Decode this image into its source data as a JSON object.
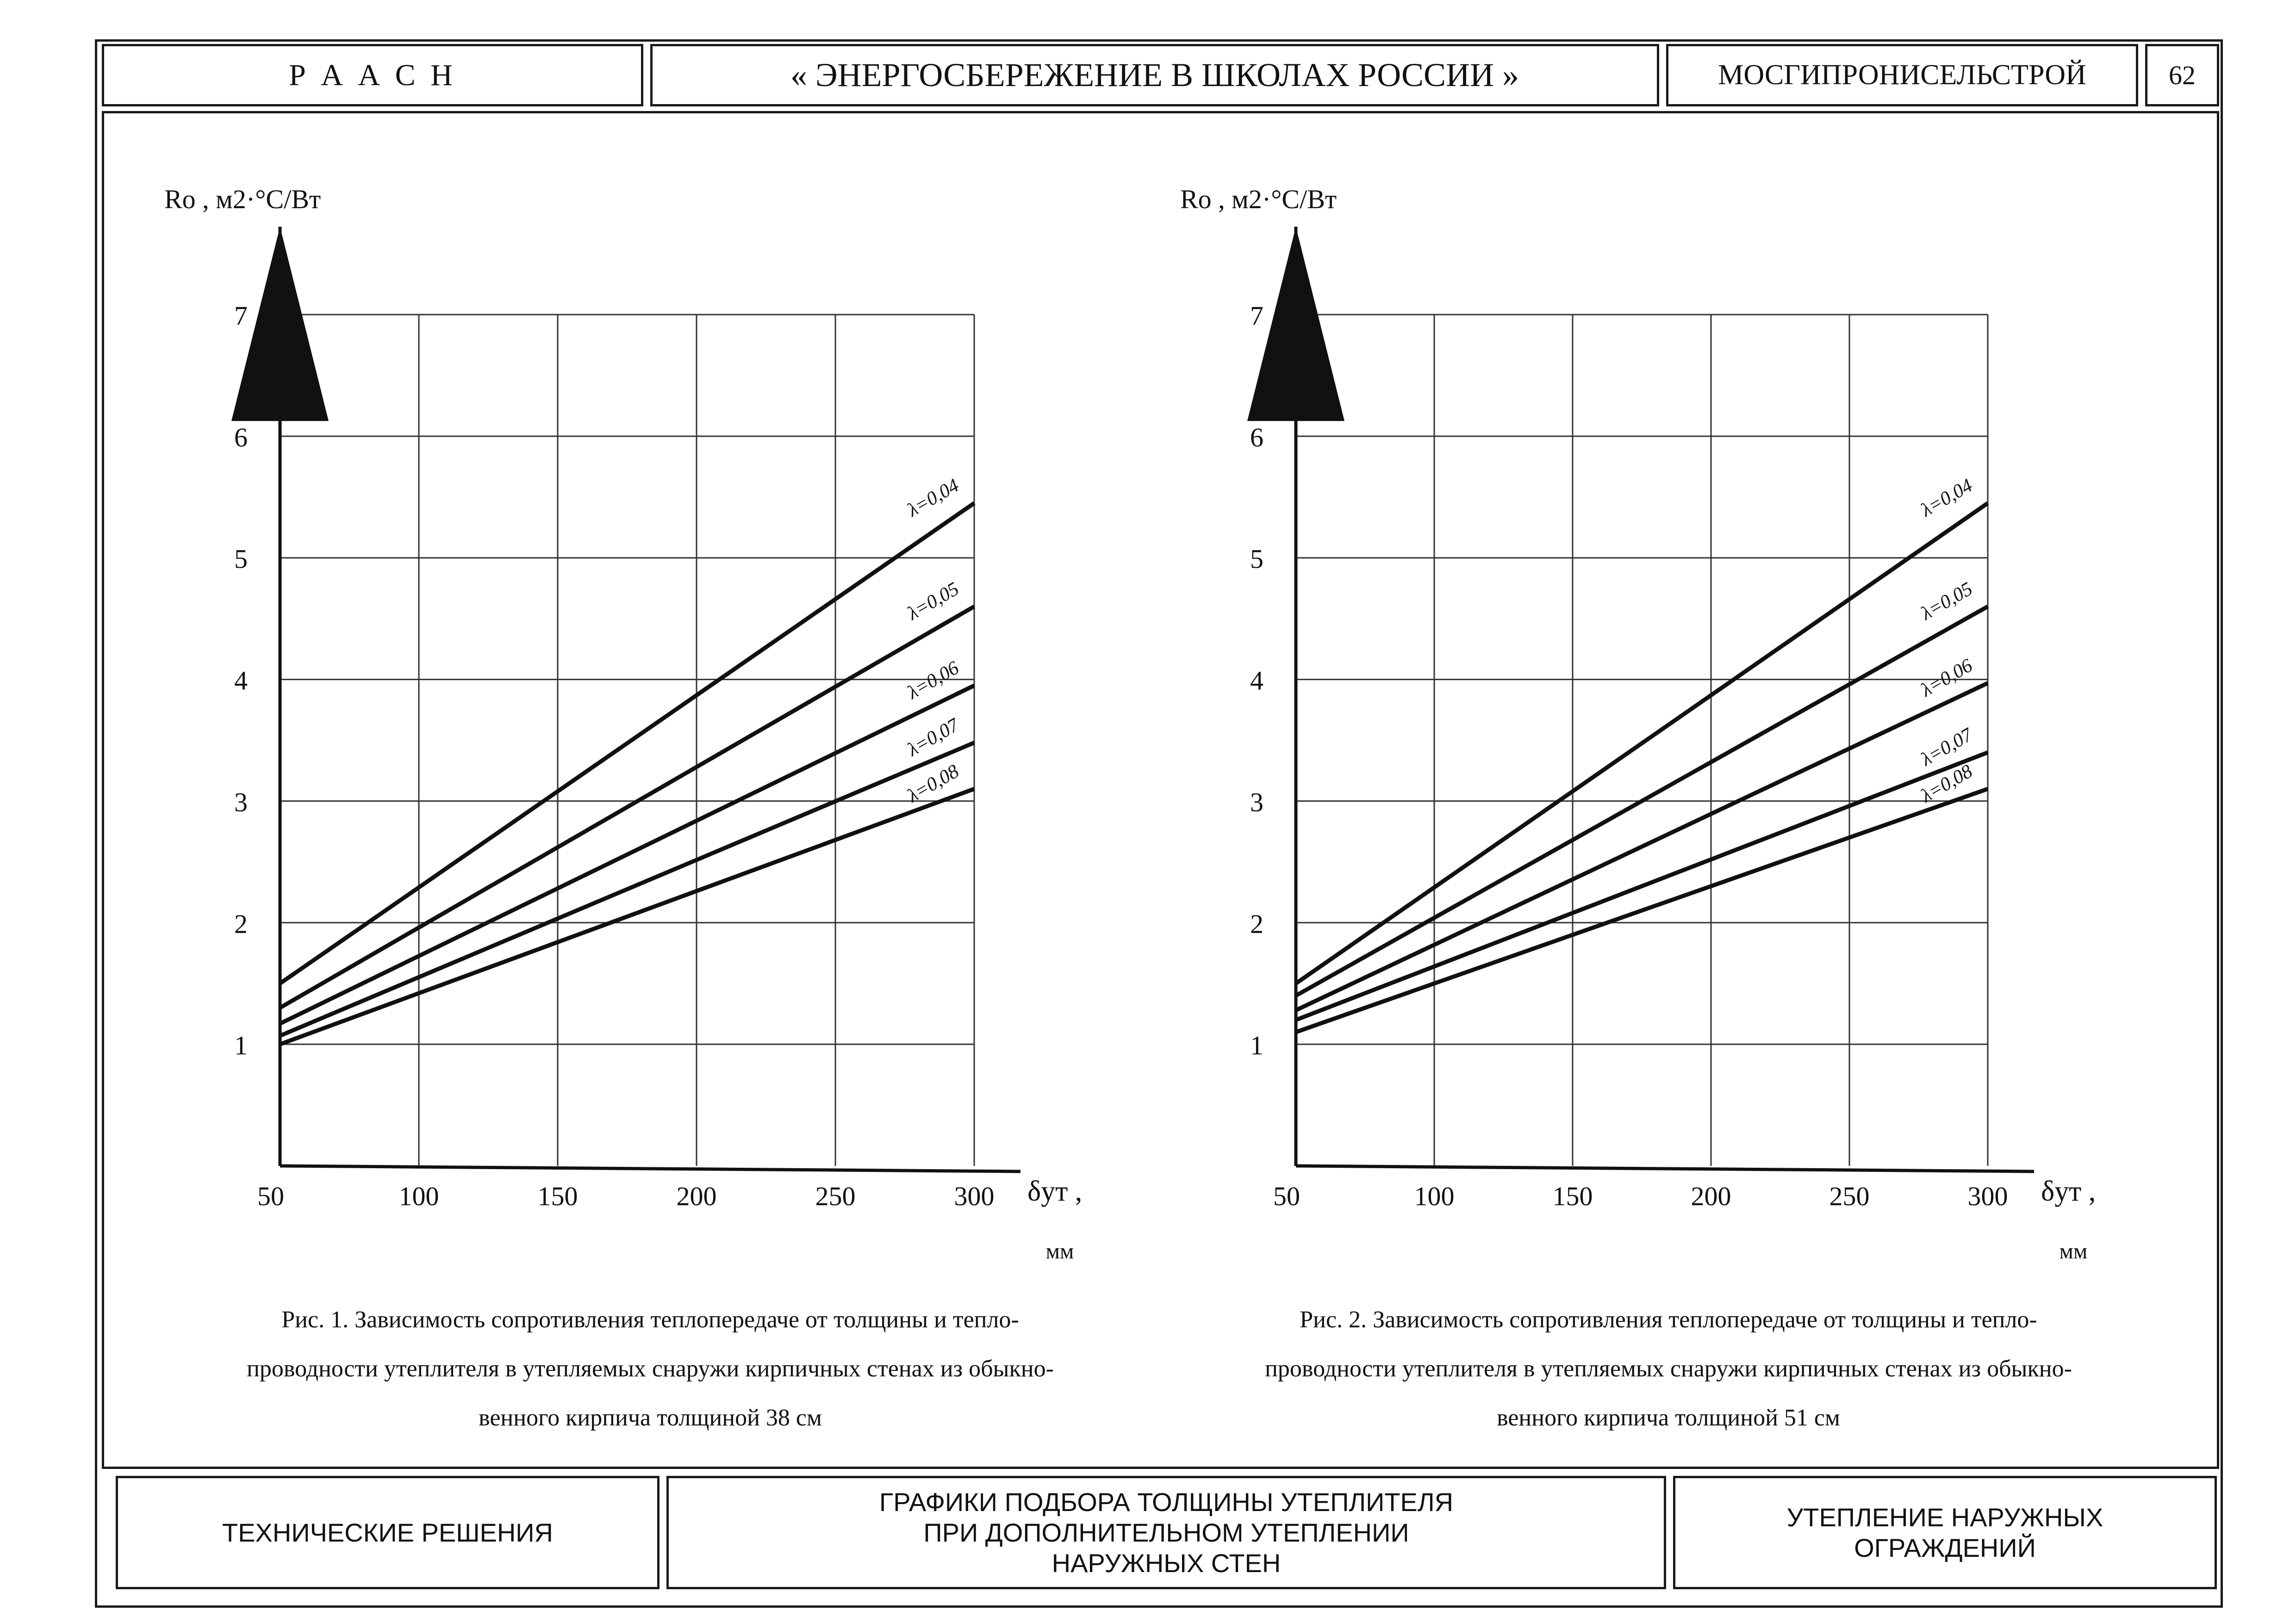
{
  "header": {
    "org": "Р А А С Н",
    "title": "« ЭНЕРГОСБЕРЕЖЕНИЕ В ШКОЛАХ РОССИИ »",
    "institute": "МОСГИПРОНИСЕЛЬСТРОЙ",
    "page_number": "62"
  },
  "footer": {
    "left": "ТЕХНИЧЕСКИЕ РЕШЕНИЯ",
    "center_lines": [
      "ГРАФИКИ ПОДБОРА ТОЛЩИНЫ УТЕПЛИТЕЛЯ",
      "ПРИ ДОПОЛНИТЕЛЬНОМ УТЕПЛЕНИИ",
      "НАРУЖНЫХ СТЕН"
    ],
    "right_lines": [
      "УТЕПЛЕНИЕ НАРУЖНЫХ",
      "ОГРАЖДЕНИЙ"
    ]
  },
  "chart_data": [
    {
      "type": "line",
      "title": "",
      "ylabel": "Ro , м2·°С/Вт",
      "xlabel": "δут ,",
      "xunit": "мм",
      "xlim": [
        50,
        300
      ],
      "ylim": [
        0,
        7
      ],
      "x_ticks": [
        50,
        100,
        150,
        200,
        250,
        300
      ],
      "y_ticks": [
        1,
        2,
        3,
        4,
        5,
        6,
        7
      ],
      "grid": true,
      "series": [
        {
          "name": "λ=0,04",
          "x": [
            50,
            300
          ],
          "y": [
            1.5,
            5.45
          ]
        },
        {
          "name": "λ=0,05",
          "x": [
            50,
            300
          ],
          "y": [
            1.3,
            4.6
          ]
        },
        {
          "name": "λ=0,06",
          "x": [
            50,
            300
          ],
          "y": [
            1.17,
            3.95
          ]
        },
        {
          "name": "λ=0,07",
          "x": [
            50,
            300
          ],
          "y": [
            1.07,
            3.48
          ]
        },
        {
          "name": "λ=0,08",
          "x": [
            50,
            300
          ],
          "y": [
            1.0,
            3.1
          ]
        }
      ],
      "caption_lines": [
        "Рис. 1.   Зависимость сопротивления теплопередаче от толщины и тепло-",
        "проводности утеплителя в утепляемых снаружи кирпичных стенах из обыкно-",
        "венного кирпича толщиной 38 см"
      ]
    },
    {
      "type": "line",
      "title": "",
      "ylabel": "Ro , м2·°С/Вт",
      "xlabel": "δут ,",
      "xunit": "мм",
      "xlim": [
        50,
        300
      ],
      "ylim": [
        0,
        7
      ],
      "x_ticks": [
        50,
        100,
        150,
        200,
        250,
        300
      ],
      "y_ticks": [
        1,
        2,
        3,
        4,
        5,
        6,
        7
      ],
      "grid": true,
      "series": [
        {
          "name": "λ=0,04",
          "x": [
            50,
            300
          ],
          "y": [
            1.5,
            5.45
          ]
        },
        {
          "name": "λ=0,05",
          "x": [
            50,
            300
          ],
          "y": [
            1.4,
            4.6
          ]
        },
        {
          "name": "λ=0,06",
          "x": [
            50,
            300
          ],
          "y": [
            1.28,
            3.97
          ]
        },
        {
          "name": "λ=0,07",
          "x": [
            50,
            300
          ],
          "y": [
            1.2,
            3.4
          ]
        },
        {
          "name": "λ=0,08",
          "x": [
            50,
            300
          ],
          "y": [
            1.1,
            3.1
          ]
        }
      ],
      "caption_lines": [
        "Рис. 2.   Зависимость сопротивления теплопередаче от толщины и тепло-",
        "проводности утеплителя в утепляемых снаружи кирпичных стенах из обыкно-",
        "венного кирпича толщиной 51 см"
      ]
    }
  ]
}
